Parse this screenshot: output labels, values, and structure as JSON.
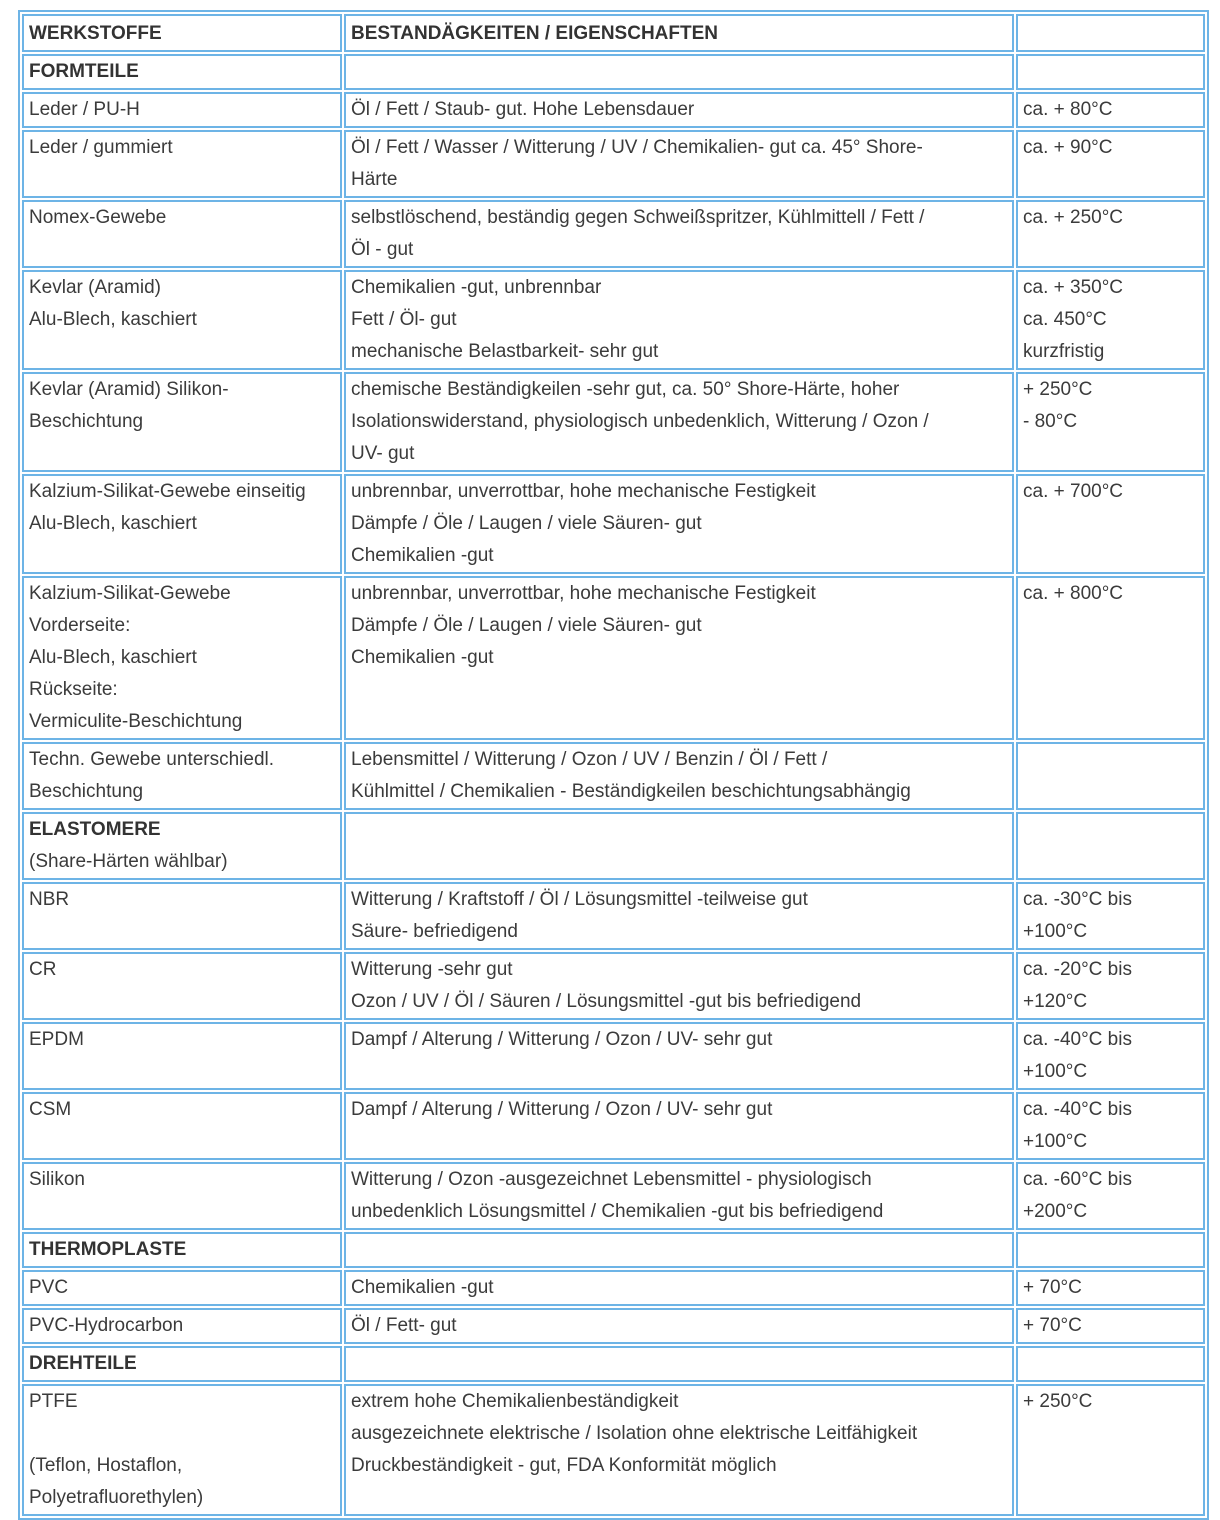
{
  "table": {
    "border_color": "#6db4e6",
    "text_color": "#3b3b3b",
    "columns": [
      "WERKSTOFFE",
      "BESTANDÄGKEITEN / EIGENSCHAFTEN",
      ""
    ],
    "rows": [
      {
        "type": "section",
        "material": [
          "FORMTEILE"
        ],
        "properties": [],
        "temp": []
      },
      {
        "type": "data",
        "material": [
          "Leder / PU-H"
        ],
        "properties": [
          "Öl / Fett / Staub- gut. Hohe Lebensdauer"
        ],
        "temp": [
          "ca. + 80°C"
        ]
      },
      {
        "type": "data",
        "material": [
          "Leder / gummiert"
        ],
        "properties": [
          "Öl / Fett / Wasser / Witterung / UV / Chemikalien- gut ca. 45° Shore-",
          "Härte"
        ],
        "temp": [
          "ca. + 90°C"
        ]
      },
      {
        "type": "data",
        "material": [
          "Nomex-Gewebe"
        ],
        "properties": [
          "selbstlöschend, beständig gegen Schweißspritzer, Kühlmittell / Fett /",
          "Öl - gut"
        ],
        "temp": [
          "ca. + 250°C"
        ]
      },
      {
        "type": "data",
        "material": [
          "Kevlar (Aramid)",
          "Alu-Blech, kaschiert"
        ],
        "properties": [
          "Chemikalien -gut, unbrennbar",
          "Fett / Öl- gut",
          "mechanische Belastbarkeit- sehr gut"
        ],
        "temp": [
          "ca. + 350°C",
          "ca. 450°C",
          "kurzfristig"
        ]
      },
      {
        "type": "data",
        "material": [
          "Kevlar (Aramid) Silikon-",
          "Beschichtung"
        ],
        "properties": [
          "chemische Beständigkeilen -sehr gut, ca. 50° Shore-Härte, hoher",
          "Isolationswiderstand, physiologisch unbedenklich, Witterung / Ozon /",
          "UV- gut"
        ],
        "temp": [
          "+ 250°C",
          "- 80°C"
        ]
      },
      {
        "type": "data",
        "material": [
          "Kalzium-Silikat-Gewebe einseitig",
          "Alu-Blech, kaschiert"
        ],
        "properties": [
          "unbrennbar, unverrottbar, hohe mechanische Festigkeit",
          "Dämpfe / Öle / Laugen / viele Säuren- gut",
          "Chemikalien -gut"
        ],
        "temp": [
          "ca. + 700°C"
        ]
      },
      {
        "type": "data",
        "material": [
          "Kalzium-Silikat-Gewebe",
          "Vorderseite:",
          "Alu-Blech, kaschiert",
          "Rückseite:",
          "Vermiculite-Beschichtung"
        ],
        "properties": [
          "unbrennbar, unverrottbar, hohe mechanische Festigkeit",
          "Dämpfe / Öle / Laugen / viele Säuren- gut",
          "Chemikalien -gut"
        ],
        "temp": [
          "ca. + 800°C"
        ]
      },
      {
        "type": "data",
        "material": [
          "Techn. Gewebe unterschiedl.",
          "Beschichtung"
        ],
        "properties": [
          "Lebensmittel / Witterung / Ozon / UV / Benzin / Öl / Fett /",
          "Kühlmittel / Chemikalien - Beständigkeilen beschichtungsabhängig"
        ],
        "temp": []
      },
      {
        "type": "section",
        "material": [
          "ELASTOMERE",
          "(Share-Härten wählbar)"
        ],
        "properties": [],
        "temp": []
      },
      {
        "type": "data",
        "material": [
          "NBR"
        ],
        "properties": [
          "Witterung / Kraftstoff / Öl / Lösungsmittel -teilweise gut",
          "Säure- befriedigend"
        ],
        "temp": [
          "ca. -30°C bis",
          "+100°C"
        ]
      },
      {
        "type": "data",
        "material": [
          "CR"
        ],
        "properties": [
          "Witterung -sehr gut",
          "Ozon / UV / Öl / Säuren / Lösungsmittel -gut bis befriedigend"
        ],
        "temp": [
          "ca. -20°C bis",
          "+120°C"
        ]
      },
      {
        "type": "data",
        "material": [
          "EPDM"
        ],
        "properties": [
          "Dampf / Alterung / Witterung / Ozon / UV- sehr gut"
        ],
        "temp": [
          "ca. -40°C bis",
          "+100°C"
        ]
      },
      {
        "type": "data",
        "material": [
          "CSM"
        ],
        "properties": [
          "Dampf / Alterung / Witterung / Ozon / UV- sehr gut"
        ],
        "temp": [
          "ca. -40°C bis",
          "+100°C"
        ]
      },
      {
        "type": "data",
        "material": [
          "Silikon"
        ],
        "properties": [
          "Witterung / Ozon -ausgezeichnet Lebensmittel - physiologisch",
          "unbedenklich Lösungsmittel / Chemikalien -gut bis befriedigend"
        ],
        "temp": [
          "ca. -60°C bis",
          "+200°C"
        ]
      },
      {
        "type": "section",
        "material": [
          "THERMOPLASTE"
        ],
        "properties": [],
        "temp": []
      },
      {
        "type": "data",
        "material": [
          "PVC"
        ],
        "properties": [
          "Chemikalien -gut"
        ],
        "temp": [
          "+ 70°C"
        ]
      },
      {
        "type": "data",
        "material": [
          "PVC-Hydrocarbon"
        ],
        "properties": [
          "Öl / Fett- gut"
        ],
        "temp": [
          "+ 70°C"
        ]
      },
      {
        "type": "section",
        "material": [
          "DREHTEILE"
        ],
        "properties": [],
        "temp": []
      },
      {
        "type": "data",
        "material": [
          "PTFE",
          "",
          "(Teflon, Hostaflon,",
          "Polyetrafluorethylen)"
        ],
        "properties": [
          "extrem hohe Chemikalienbeständigkeit",
          "ausgezeichnete elektrische / Isolation ohne elektrische Leitfähigkeit",
          "Druckbeständigkeit - gut, FDA Konformität möglich"
        ],
        "temp": [
          "+ 250°C"
        ]
      }
    ]
  }
}
